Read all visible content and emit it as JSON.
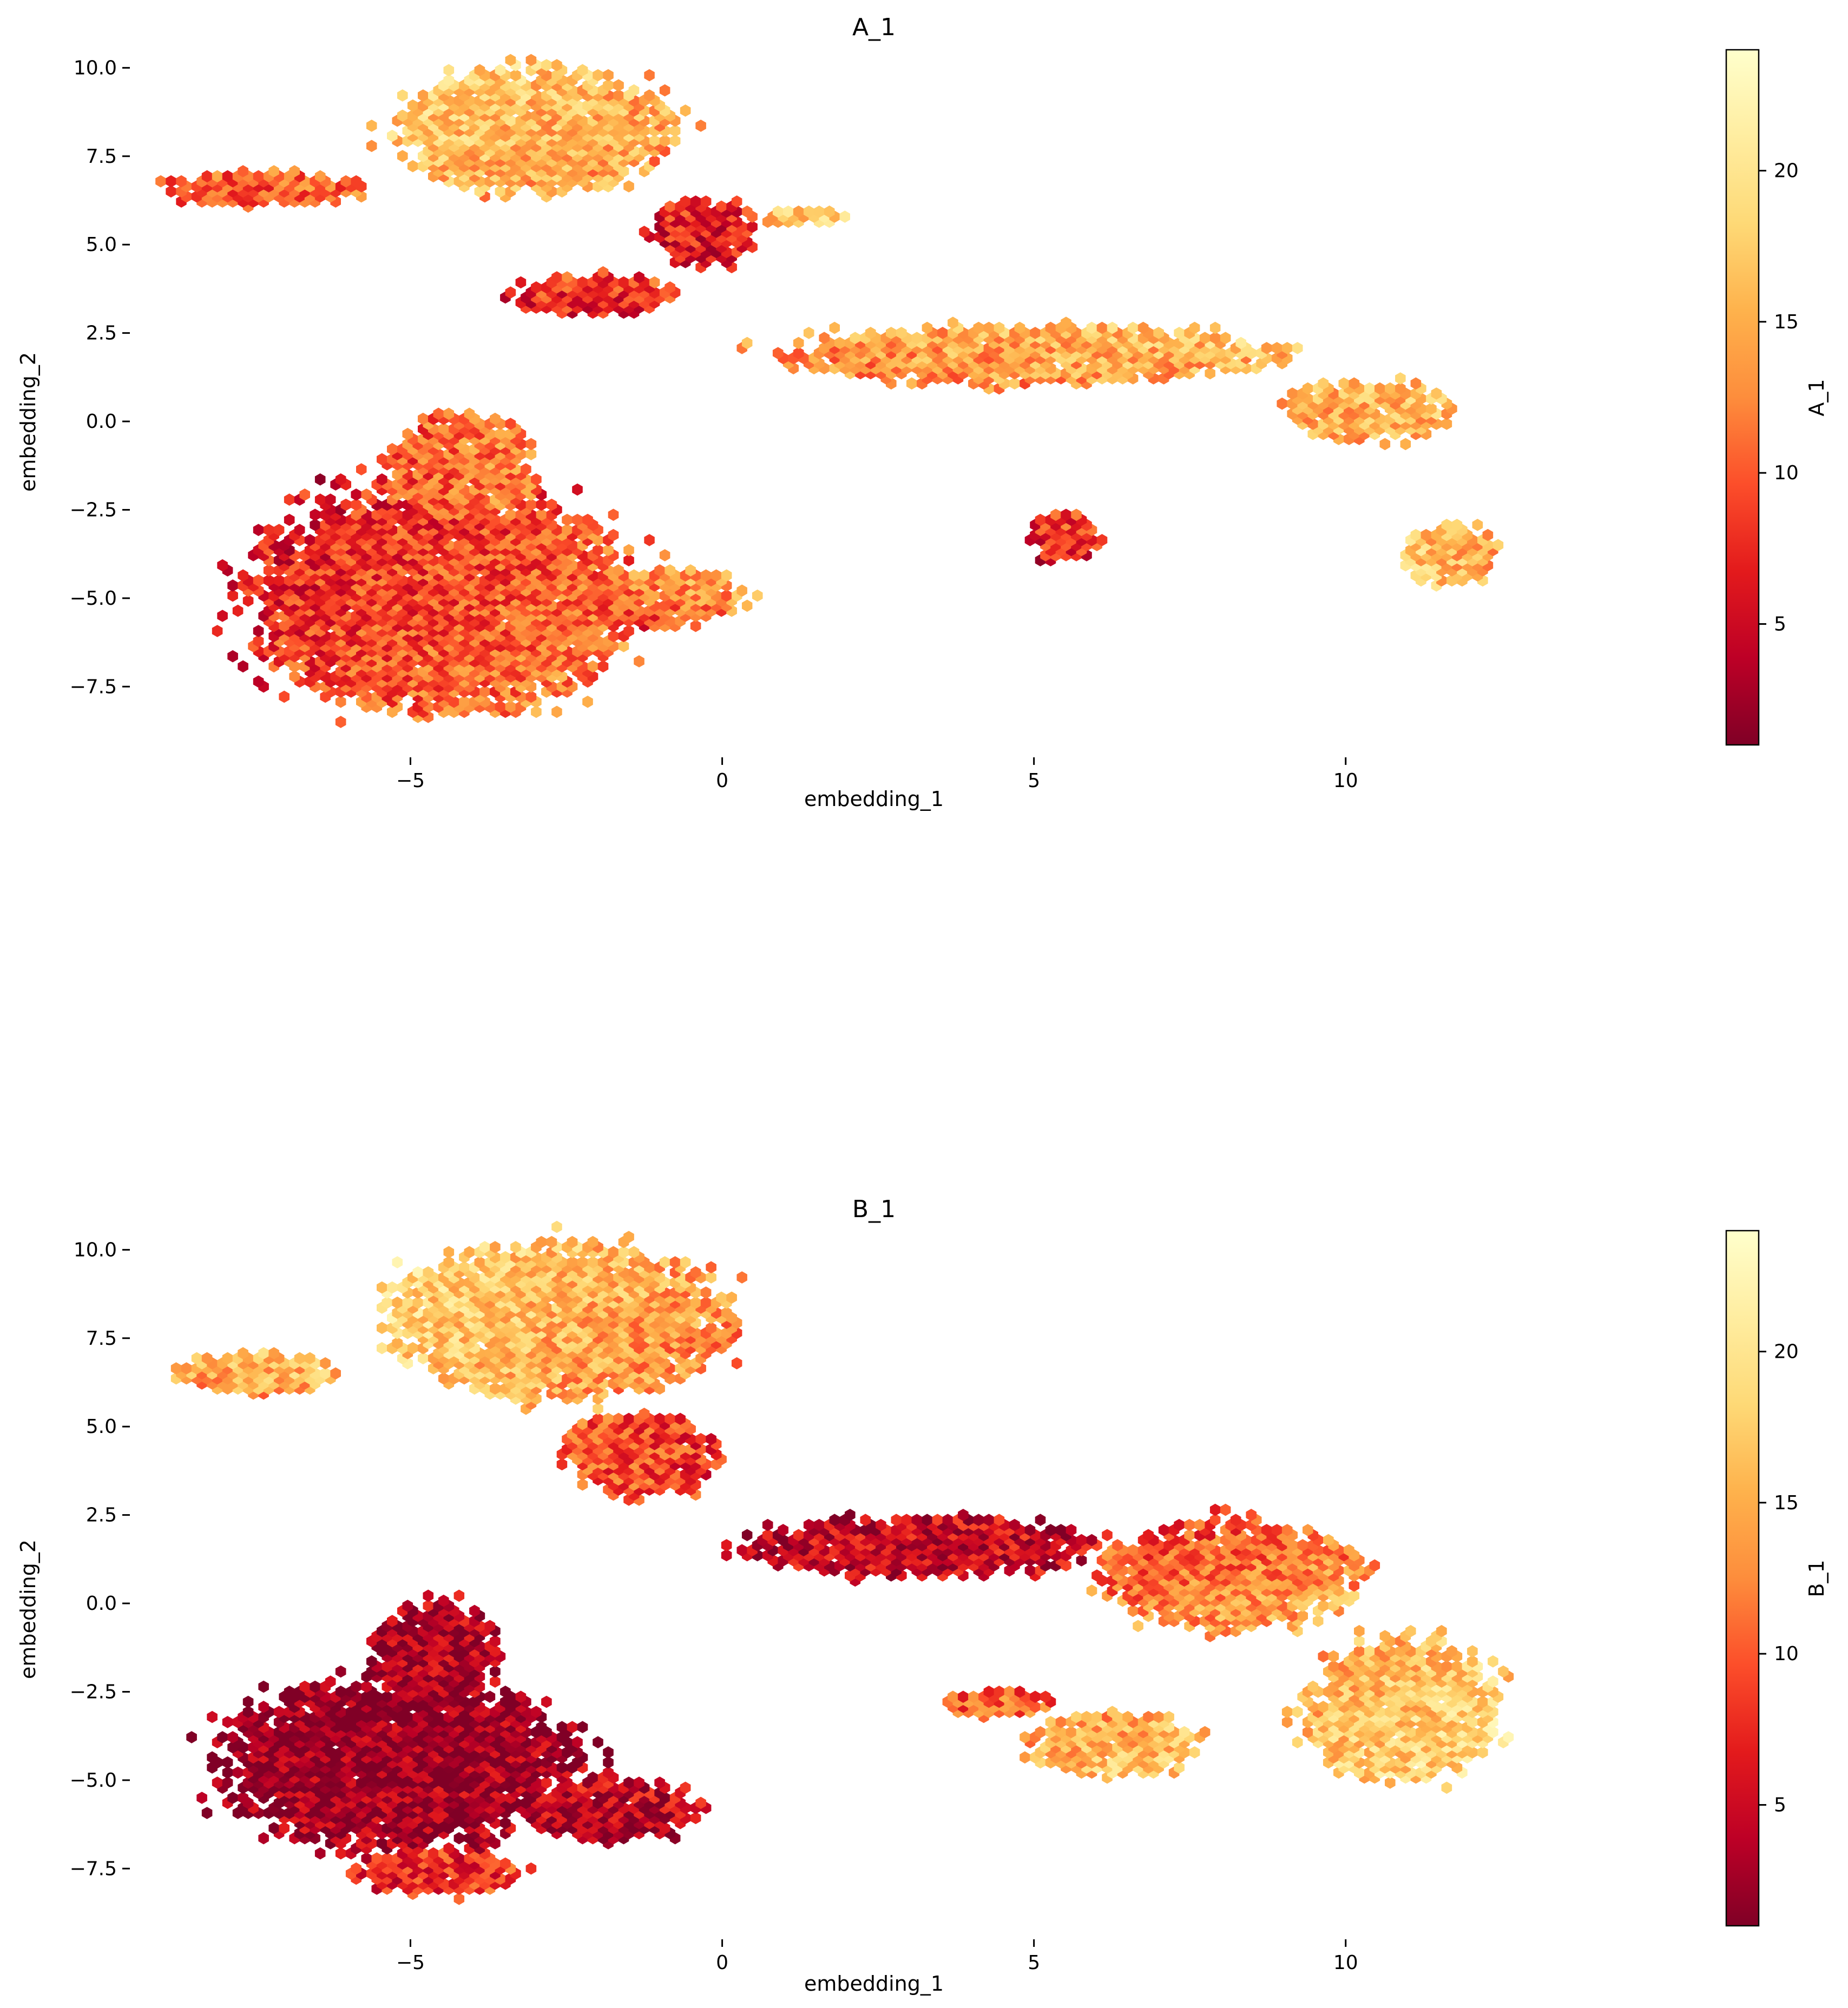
{
  "chart_data": [
    {
      "type": "hexbin",
      "title": "A_1",
      "xlabel": "embedding_1",
      "ylabel": "embedding_2",
      "colorbar_label": "A_1",
      "colormap": "YlOrRd_r",
      "colormap_stops": [
        "#800026",
        "#bd0026",
        "#e31a1c",
        "#fc4e2a",
        "#fd8d3c",
        "#feb24c",
        "#fed976",
        "#ffeda0",
        "#ffffcc"
      ],
      "xlim": [
        -9.5,
        13.5
      ],
      "ylim": [
        -9.5,
        11.0
      ],
      "xticks": [
        -5,
        0,
        5,
        10
      ],
      "xtick_labels": [
        "−5",
        "0",
        "5",
        "10"
      ],
      "yticks": [
        -7.5,
        -5.0,
        -2.5,
        0.0,
        2.5,
        5.0,
        7.5,
        10.0
      ],
      "ytick_labels": [
        "−7.5",
        "−5.0",
        "−2.5",
        "0.0",
        "2.5",
        "5.0",
        "7.5",
        "10.0"
      ],
      "color_range": [
        1,
        24
      ],
      "colorbar_ticks": [
        5,
        10,
        15,
        20
      ],
      "grid": false,
      "clusters": [
        {
          "cx": -4.5,
          "cy": -5.0,
          "rx": 3.3,
          "ry": 3.4,
          "v_left": 2,
          "v_right": 12,
          "v_bottom": 15,
          "v_top": 8
        },
        {
          "cx": -4.2,
          "cy": -1.5,
          "rx": 1.3,
          "ry": 1.8,
          "v_left": 7,
          "v_right": 15,
          "v_bottom": 10,
          "v_top": 12
        },
        {
          "cx": -1.2,
          "cy": -5.0,
          "rx": 1.6,
          "ry": 0.9,
          "v_left": 6,
          "v_right": 18,
          "v_bottom": 4,
          "v_top": 17
        },
        {
          "cx": -3.0,
          "cy": 8.2,
          "rx": 2.3,
          "ry": 1.9,
          "v_left": 18,
          "v_right": 12,
          "v_bottom": 14,
          "v_top": 19
        },
        {
          "cx": -7.3,
          "cy": 6.6,
          "rx": 1.6,
          "ry": 0.5,
          "v_left": 8,
          "v_right": 12,
          "v_bottom": 10,
          "v_top": 12
        },
        {
          "cx": -0.3,
          "cy": 5.3,
          "rx": 0.9,
          "ry": 1.0,
          "v_left": 6,
          "v_right": 6,
          "v_bottom": 5,
          "v_top": 9
        },
        {
          "cx": -2.1,
          "cy": 3.6,
          "rx": 1.4,
          "ry": 0.6,
          "v_left": 6,
          "v_right": 8,
          "v_bottom": 7,
          "v_top": 10
        },
        {
          "cx": 1.3,
          "cy": 5.8,
          "rx": 0.8,
          "ry": 0.2,
          "v_left": 16,
          "v_right": 18,
          "v_bottom": 17,
          "v_top": 17
        },
        {
          "cx": 5.0,
          "cy": 1.9,
          "rx": 4.2,
          "ry": 0.85,
          "v_left": 10,
          "v_right": 17,
          "v_bottom": 13,
          "v_top": 18
        },
        {
          "cx": 10.3,
          "cy": 0.3,
          "rx": 1.4,
          "ry": 0.9,
          "v_left": 13,
          "v_right": 17,
          "v_bottom": 14,
          "v_top": 17
        },
        {
          "cx": 11.7,
          "cy": -3.8,
          "rx": 0.8,
          "ry": 0.9,
          "v_left": 18,
          "v_right": 14,
          "v_bottom": 16,
          "v_top": 16
        },
        {
          "cx": 5.5,
          "cy": -3.3,
          "rx": 0.6,
          "ry": 0.7,
          "v_left": 6,
          "v_right": 6,
          "v_bottom": 5,
          "v_top": 12
        }
      ]
    },
    {
      "type": "hexbin",
      "title": "B_1",
      "xlabel": "embedding_1",
      "ylabel": "embedding_2",
      "colorbar_label": "B_1",
      "colormap": "YlOrRd_r",
      "colormap_stops": [
        "#800026",
        "#bd0026",
        "#e31a1c",
        "#fc4e2a",
        "#fd8d3c",
        "#feb24c",
        "#fed976",
        "#ffeda0",
        "#ffffcc"
      ],
      "xlim": [
        -9.5,
        13.5
      ],
      "ylim": [
        -9.5,
        11.0
      ],
      "xticks": [
        -5,
        0,
        5,
        10
      ],
      "xtick_labels": [
        "−5",
        "0",
        "5",
        "10"
      ],
      "yticks": [
        -7.5,
        -5.0,
        -2.5,
        0.0,
        2.5,
        5.0,
        7.5,
        10.0
      ],
      "ytick_labels": [
        "−7.5",
        "−5.0",
        "−2.5",
        "0.0",
        "2.5",
        "5.0",
        "7.5",
        "10.0"
      ],
      "color_range": [
        1,
        24
      ],
      "colorbar_ticks": [
        5,
        10,
        15,
        20
      ],
      "grid": false,
      "clusters": [
        {
          "cx": -5.2,
          "cy": -4.6,
          "rx": 3.0,
          "ry": 2.6,
          "v_left": 1,
          "v_right": 3,
          "v_bottom": 4,
          "v_top": 2
        },
        {
          "cx": -4.6,
          "cy": -1.5,
          "rx": 1.1,
          "ry": 1.6,
          "v_left": 2,
          "v_right": 4,
          "v_bottom": 3,
          "v_top": 4
        },
        {
          "cx": -1.8,
          "cy": -5.8,
          "rx": 1.6,
          "ry": 0.9,
          "v_left": 3,
          "v_right": 4,
          "v_bottom": 2,
          "v_top": 7
        },
        {
          "cx": -4.6,
          "cy": -7.6,
          "rx": 1.4,
          "ry": 0.7,
          "v_left": 6,
          "v_right": 9,
          "v_bottom": 8,
          "v_top": 7
        },
        {
          "cx": -2.6,
          "cy": 8.0,
          "rx": 2.9,
          "ry": 2.3,
          "v_left": 20,
          "v_right": 9,
          "v_bottom": 14,
          "v_top": 19
        },
        {
          "cx": -7.5,
          "cy": 6.5,
          "rx": 1.4,
          "ry": 0.6,
          "v_left": 13,
          "v_right": 17,
          "v_bottom": 12,
          "v_top": 18
        },
        {
          "cx": -1.3,
          "cy": 4.2,
          "rx": 1.3,
          "ry": 1.3,
          "v_left": 12,
          "v_right": 7,
          "v_bottom": 9,
          "v_top": 9
        },
        {
          "cx": 3.2,
          "cy": 1.6,
          "rx": 2.9,
          "ry": 0.9,
          "v_left": 4,
          "v_right": 5,
          "v_bottom": 5,
          "v_top": 5
        },
        {
          "cx": 8.2,
          "cy": 0.8,
          "rx": 2.2,
          "ry": 1.6,
          "v_left": 9,
          "v_right": 15,
          "v_bottom": 17,
          "v_top": 7
        },
        {
          "cx": 10.9,
          "cy": -3.0,
          "rx": 1.6,
          "ry": 2.1,
          "v_left": 14,
          "v_right": 19,
          "v_bottom": 20,
          "v_top": 15
        },
        {
          "cx": 6.3,
          "cy": -4.0,
          "rx": 1.5,
          "ry": 0.9,
          "v_left": 14,
          "v_right": 18,
          "v_bottom": 18,
          "v_top": 13
        },
        {
          "cx": 4.4,
          "cy": -2.8,
          "rx": 0.9,
          "ry": 0.4,
          "v_left": 10,
          "v_right": 11,
          "v_bottom": 12,
          "v_top": 10
        }
      ]
    }
  ]
}
